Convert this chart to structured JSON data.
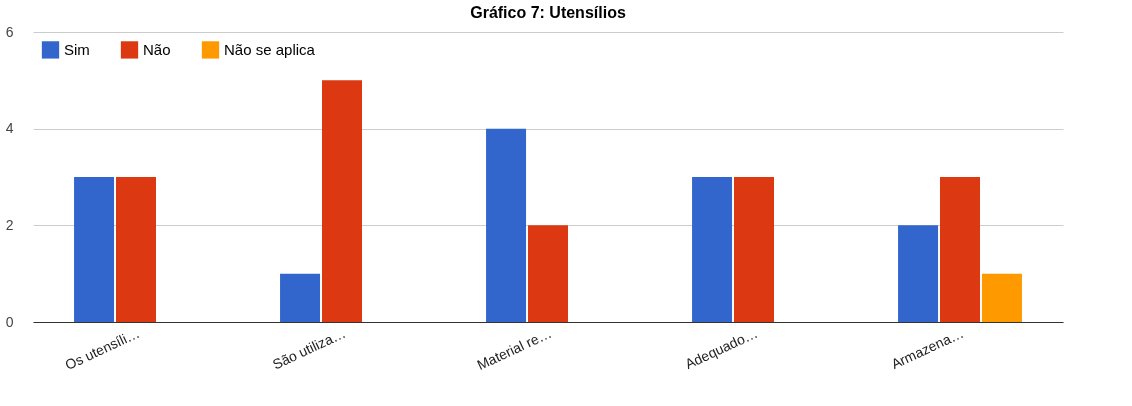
{
  "chart_data": {
    "type": "bar",
    "title": "Gráfico 7: Utensílios",
    "categories": [
      "Os utensíli…",
      "São utiliza…",
      "Material re…",
      "Adequado…",
      "Armazena…"
    ],
    "series": [
      {
        "name": "Sim",
        "color": "#3366cc",
        "values": [
          3,
          1,
          4,
          3,
          2
        ]
      },
      {
        "name": "Não",
        "color": "#dc3912",
        "values": [
          3,
          5,
          2,
          3,
          3
        ]
      },
      {
        "name": "Não se aplica",
        "color": "#ff9900",
        "values": [
          null,
          null,
          null,
          null,
          1
        ]
      }
    ],
    "ylim": [
      0,
      6
    ],
    "yticks": [
      0,
      2,
      4,
      6
    ],
    "grid": "y",
    "legend": "top left"
  }
}
